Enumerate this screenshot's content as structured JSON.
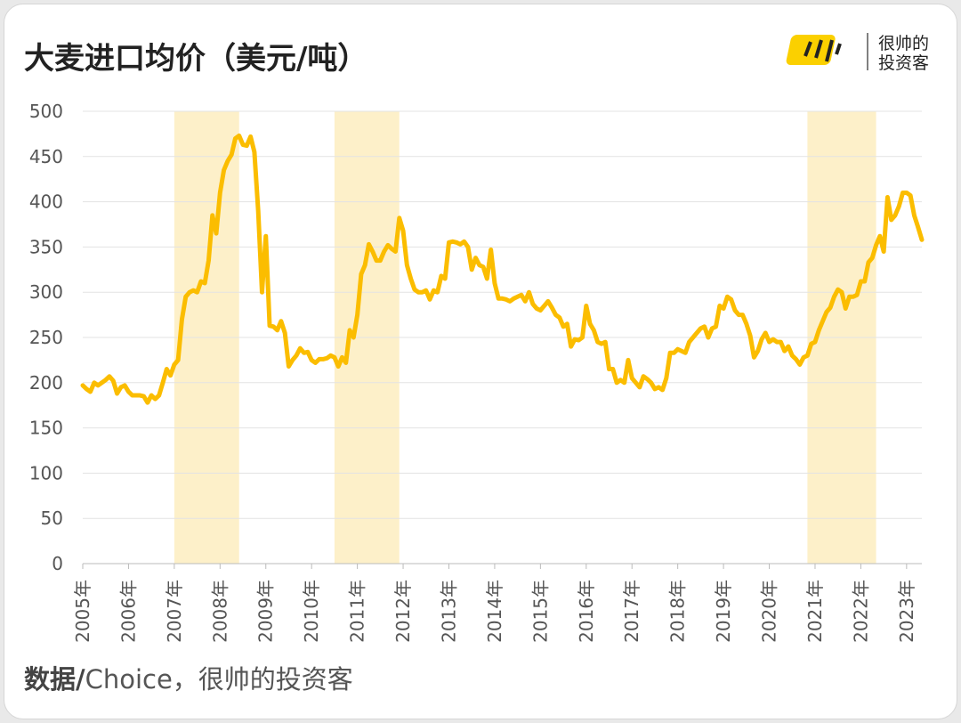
{
  "chart_data": {
    "type": "line",
    "title": "大麦进口均价（美元/吨）",
    "logo_lines": [
      "很帅的",
      "投资客"
    ],
    "source_label": "数据/",
    "source": "Choice，很帅的投资客",
    "categories": [
      "2005年",
      null,
      null,
      null,
      null,
      null,
      null,
      null,
      null,
      null,
      null,
      null,
      "2006年",
      null,
      null,
      null,
      null,
      null,
      null,
      null,
      null,
      null,
      null,
      null,
      "2007年",
      null,
      null,
      null,
      null,
      null,
      null,
      null,
      null,
      null,
      null,
      null,
      "2008年",
      null,
      null,
      null,
      null,
      null,
      null,
      null,
      null,
      null,
      null,
      null,
      "2009年",
      null,
      null,
      null,
      null,
      null,
      null,
      null,
      null,
      null,
      null,
      null,
      "2010年",
      null,
      null,
      null,
      null,
      null,
      null,
      null,
      null,
      null,
      null,
      null,
      "2011年",
      null,
      null,
      null,
      null,
      null,
      null,
      null,
      null,
      null,
      null,
      null,
      "2012年",
      null,
      null,
      null,
      null,
      null,
      null,
      null,
      null,
      null,
      null,
      null,
      "2013年",
      null,
      null,
      null,
      null,
      null,
      null,
      null,
      null,
      null,
      null,
      null,
      "2014年",
      null,
      null,
      null,
      null,
      null,
      null,
      null,
      null,
      null,
      null,
      null,
      "2015年",
      null,
      null,
      null,
      null,
      null,
      null,
      null,
      null,
      null,
      null,
      null,
      "2016年",
      null,
      null,
      null,
      null,
      null,
      null,
      null,
      null,
      null,
      null,
      null,
      "2017年",
      null,
      null,
      null,
      null,
      null,
      null,
      null,
      null,
      null,
      null,
      null,
      "2018年",
      null,
      null,
      null,
      null,
      null,
      null,
      null,
      null,
      null,
      null,
      null,
      "2019年",
      null,
      null,
      null,
      null,
      null,
      null,
      null,
      null,
      null,
      null,
      null,
      "2020年",
      null,
      null,
      null,
      null,
      null,
      null,
      null,
      null,
      null,
      null,
      null,
      "2021年",
      null,
      null,
      null,
      null,
      null,
      null,
      null,
      null,
      null,
      null,
      null,
      "2022年",
      null,
      null,
      null,
      null,
      null,
      null,
      null,
      null,
      null,
      null,
      null,
      "2023年",
      null,
      null,
      null,
      null
    ],
    "values": [
      197,
      193,
      190,
      200,
      197,
      200,
      203,
      207,
      202,
      188,
      195,
      197,
      190,
      186,
      186,
      186,
      185,
      178,
      186,
      182,
      186,
      200,
      215,
      208,
      220,
      225,
      270,
      295,
      300,
      302,
      300,
      312,
      310,
      335,
      385,
      365,
      410,
      435,
      445,
      452,
      470,
      473,
      463,
      462,
      472,
      455,
      390,
      300,
      362,
      263,
      262,
      258,
      268,
      255,
      218,
      225,
      230,
      238,
      233,
      234,
      225,
      222,
      226,
      226,
      227,
      230,
      228,
      218,
      228,
      222,
      258,
      250,
      275,
      320,
      330,
      353,
      345,
      335,
      335,
      345,
      352,
      348,
      345,
      382,
      368,
      330,
      315,
      303,
      300,
      300,
      302,
      292,
      302,
      300,
      318,
      315,
      355,
      356,
      355,
      353,
      356,
      350,
      325,
      338,
      330,
      328,
      315,
      347,
      310,
      293,
      293,
      292,
      290,
      293,
      295,
      297,
      290,
      300,
      287,
      282,
      280,
      285,
      290,
      283,
      275,
      272,
      262,
      265,
      240,
      248,
      247,
      250,
      285,
      265,
      258,
      245,
      243,
      245,
      215,
      215,
      200,
      203,
      200,
      225,
      205,
      200,
      195,
      207,
      204,
      200,
      193,
      195,
      192,
      205,
      233,
      233,
      237,
      235,
      233,
      245,
      250,
      255,
      260,
      262,
      250,
      260,
      262,
      285,
      282,
      295,
      292,
      280,
      275,
      275,
      265,
      252,
      228,
      235,
      248,
      255,
      245,
      248,
      245,
      245,
      235,
      240,
      230,
      226,
      220,
      228,
      230,
      243,
      245,
      258,
      268,
      278,
      283,
      295,
      303,
      300,
      282,
      295,
      295,
      297,
      312,
      312,
      333,
      338,
      352,
      362,
      345,
      405,
      380,
      385,
      395,
      410,
      410,
      407,
      385,
      372,
      358
    ],
    "color": "#fbbd00",
    "shade_color": "#fdf0c9",
    "shaded_spans": [
      [
        24,
        41
      ],
      [
        66,
        83
      ],
      [
        190,
        208
      ]
    ],
    "ylim": [
      0,
      500
    ],
    "yticks": [
      0,
      50,
      100,
      150,
      200,
      250,
      300,
      350,
      400,
      450,
      500
    ],
    "grid": true
  }
}
